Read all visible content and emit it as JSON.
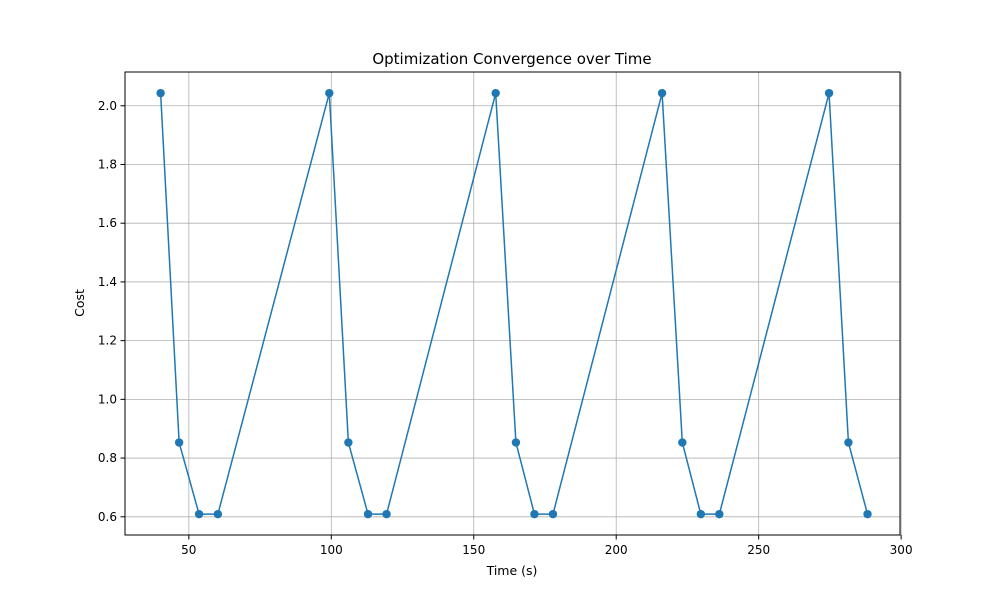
{
  "chart_data": {
    "type": "line",
    "title": "Optimization Convergence over Time",
    "xlabel": "Time (s)",
    "ylabel": "Cost",
    "xlim": [
      27.6,
      299.6
    ],
    "ylim": [
      0.538,
      2.115
    ],
    "xticks": [
      50,
      100,
      150,
      200,
      250,
      300
    ],
    "yticks": [
      0.6,
      0.8,
      1.0,
      1.2,
      1.4,
      1.6,
      1.8,
      2.0
    ],
    "xtick_labels": [
      "50",
      "100",
      "150",
      "200",
      "250",
      "300"
    ],
    "ytick_labels": [
      "0.6",
      "0.8",
      "1.0",
      "1.2",
      "1.4",
      "1.6",
      "1.8",
      "2.0"
    ],
    "grid": true,
    "series": [
      {
        "color": "#1f77b4",
        "marker": "circle",
        "x": [
          40.1,
          46.6,
          53.6,
          60.2,
          99.3,
          106.0,
          112.9,
          119.4,
          157.7,
          164.8,
          171.3,
          177.8,
          216.1,
          223.2,
          229.7,
          236.2,
          274.7,
          281.5,
          288.2
        ],
        "y": [
          2.043,
          0.853,
          0.609,
          0.609,
          2.043,
          0.853,
          0.609,
          0.609,
          2.043,
          0.853,
          0.609,
          0.609,
          2.043,
          0.853,
          0.609,
          0.609,
          2.043,
          0.853,
          0.609
        ]
      }
    ]
  }
}
